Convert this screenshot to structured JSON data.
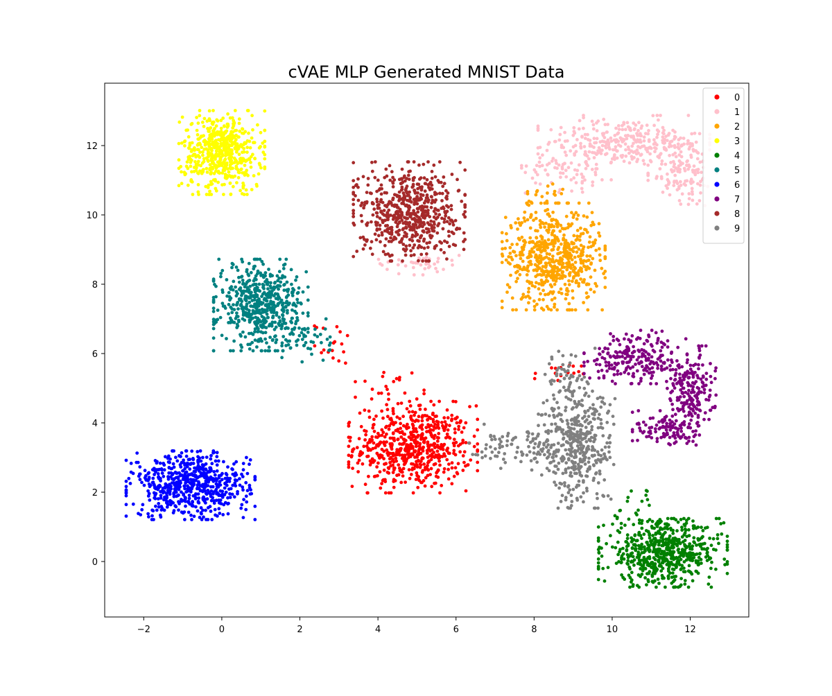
{
  "chart_data": {
    "type": "scatter",
    "title": "cVAE MLP Generated MNIST Data",
    "xlabel": "",
    "ylabel": "",
    "xlim": [
      -3.0,
      13.5
    ],
    "ylim": [
      -1.6,
      13.8
    ],
    "xticks": [
      -2,
      0,
      2,
      4,
      6,
      8,
      10,
      12
    ],
    "yticks": [
      0,
      2,
      4,
      6,
      8,
      10,
      12
    ],
    "xtick_labels": [
      "−2",
      "0",
      "2",
      "4",
      "6",
      "8",
      "10",
      "12"
    ],
    "ytick_labels": [
      "0",
      "2",
      "4",
      "6",
      "8",
      "10",
      "12"
    ],
    "grid": false,
    "legend_position": "top-right",
    "series": [
      {
        "name": "0",
        "color": "#ff0000",
        "clusters": [
          {
            "cx": 4.9,
            "cy": 3.3,
            "sx": 0.75,
            "sy": 0.6,
            "n": 620
          },
          {
            "cx": 4.3,
            "cy": 5.0,
            "sx": 0.4,
            "sy": 0.3,
            "n": 25
          },
          {
            "cx": 2.9,
            "cy": 6.3,
            "sx": 0.25,
            "sy": 0.3,
            "n": 18
          },
          {
            "cx": 8.6,
            "cy": 5.4,
            "sx": 0.3,
            "sy": 0.15,
            "n": 15
          }
        ]
      },
      {
        "name": "1",
        "color": "#ffc0cb",
        "clusters": [
          {
            "cx": 10.3,
            "cy": 12.1,
            "sx": 1.0,
            "sy": 0.35,
            "n": 280
          },
          {
            "cx": 11.8,
            "cy": 11.3,
            "sx": 0.4,
            "sy": 0.55,
            "n": 140
          },
          {
            "cx": 9.0,
            "cy": 11.4,
            "sx": 0.6,
            "sy": 0.35,
            "n": 90
          },
          {
            "cx": 5.0,
            "cy": 8.6,
            "sx": 0.55,
            "sy": 0.15,
            "n": 40
          }
        ]
      },
      {
        "name": "2",
        "color": "#ffa500",
        "clusters": [
          {
            "cx": 8.5,
            "cy": 8.8,
            "sx": 0.6,
            "sy": 0.7,
            "n": 620
          },
          {
            "cx": 8.2,
            "cy": 10.5,
            "sx": 0.3,
            "sy": 0.3,
            "n": 20
          }
        ]
      },
      {
        "name": "3",
        "color": "#ffff00",
        "clusters": [
          {
            "cx": 0.0,
            "cy": 11.8,
            "sx": 0.5,
            "sy": 0.55,
            "n": 560
          }
        ]
      },
      {
        "name": "4",
        "color": "#008000",
        "clusters": [
          {
            "cx": 11.3,
            "cy": 0.25,
            "sx": 0.75,
            "sy": 0.45,
            "n": 620
          },
          {
            "cx": 10.6,
            "cy": 1.4,
            "sx": 0.3,
            "sy": 0.35,
            "n": 20
          }
        ]
      },
      {
        "name": "5",
        "color": "#008080",
        "clusters": [
          {
            "cx": 1.0,
            "cy": 7.4,
            "sx": 0.55,
            "sy": 0.6,
            "n": 560
          },
          {
            "cx": 2.2,
            "cy": 6.4,
            "sx": 0.3,
            "sy": 0.35,
            "n": 40
          }
        ]
      },
      {
        "name": "6",
        "color": "#0000ff",
        "clusters": [
          {
            "cx": -0.8,
            "cy": 2.2,
            "sx": 0.75,
            "sy": 0.45,
            "n": 620
          }
        ]
      },
      {
        "name": "7",
        "color": "#800080",
        "clusters": [
          {
            "cx": 10.6,
            "cy": 5.9,
            "sx": 0.6,
            "sy": 0.35,
            "n": 220
          },
          {
            "cx": 12.0,
            "cy": 4.9,
            "sx": 0.3,
            "sy": 0.6,
            "n": 200
          },
          {
            "cx": 11.4,
            "cy": 3.8,
            "sx": 0.4,
            "sy": 0.25,
            "n": 110
          }
        ]
      },
      {
        "name": "8",
        "color": "#a52a2a",
        "clusters": [
          {
            "cx": 4.8,
            "cy": 10.1,
            "sx": 0.65,
            "sy": 0.65,
            "n": 620
          }
        ]
      },
      {
        "name": "9",
        "color": "#808080",
        "clusters": [
          {
            "cx": 9.1,
            "cy": 3.3,
            "sx": 0.45,
            "sy": 0.8,
            "n": 420
          },
          {
            "cx": 7.6,
            "cy": 3.3,
            "sx": 0.6,
            "sy": 0.3,
            "n": 90
          },
          {
            "cx": 8.9,
            "cy": 5.3,
            "sx": 0.3,
            "sy": 0.4,
            "n": 60
          }
        ]
      }
    ]
  }
}
